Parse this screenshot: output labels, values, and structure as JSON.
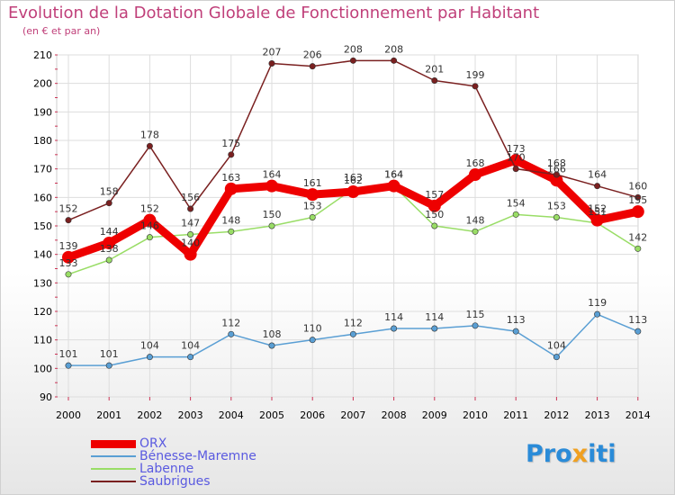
{
  "header": {
    "title": "Evolution de la Dotation Globale de Fonctionnement par Habitant",
    "subtitle": "(en € et par an)"
  },
  "logo": {
    "text": "Proxiti",
    "colors": [
      "#2a8bd8",
      "#f0a020",
      "#2a8bd8"
    ]
  },
  "chart_data": {
    "type": "line",
    "x": [
      "2000",
      "2001",
      "2002",
      "2003",
      "2004",
      "2005",
      "2006",
      "2007",
      "2008",
      "2009",
      "2010",
      "2011",
      "2012",
      "2013",
      "2014"
    ],
    "ylim": [
      90,
      210
    ],
    "yticks": [
      90,
      100,
      110,
      120,
      130,
      140,
      150,
      160,
      170,
      180,
      190,
      200,
      210
    ],
    "grid": true,
    "legend_position": "bottom-left",
    "series": [
      {
        "name": "ORX",
        "color": "#ee0000",
        "emphasis": true,
        "values": [
          139,
          144,
          152,
          140,
          163,
          164,
          161,
          162,
          164,
          157,
          168,
          173,
          166,
          152,
          155
        ]
      },
      {
        "name": "Bénesse-Maremne",
        "color": "#5a9fd4",
        "values": [
          101,
          101,
          104,
          104,
          112,
          108,
          110,
          112,
          114,
          114,
          115,
          113,
          104,
          119,
          113
        ]
      },
      {
        "name": "Labenne",
        "color": "#99dd66",
        "values": [
          133,
          138,
          146,
          147,
          148,
          150,
          153,
          163,
          164,
          150,
          148,
          154,
          153,
          151,
          142
        ]
      },
      {
        "name": "Saubrigues",
        "color": "#7a2020",
        "values": [
          152,
          158,
          178,
          156,
          175,
          207,
          206,
          208,
          208,
          201,
          199,
          170,
          168,
          164,
          160
        ]
      }
    ]
  }
}
